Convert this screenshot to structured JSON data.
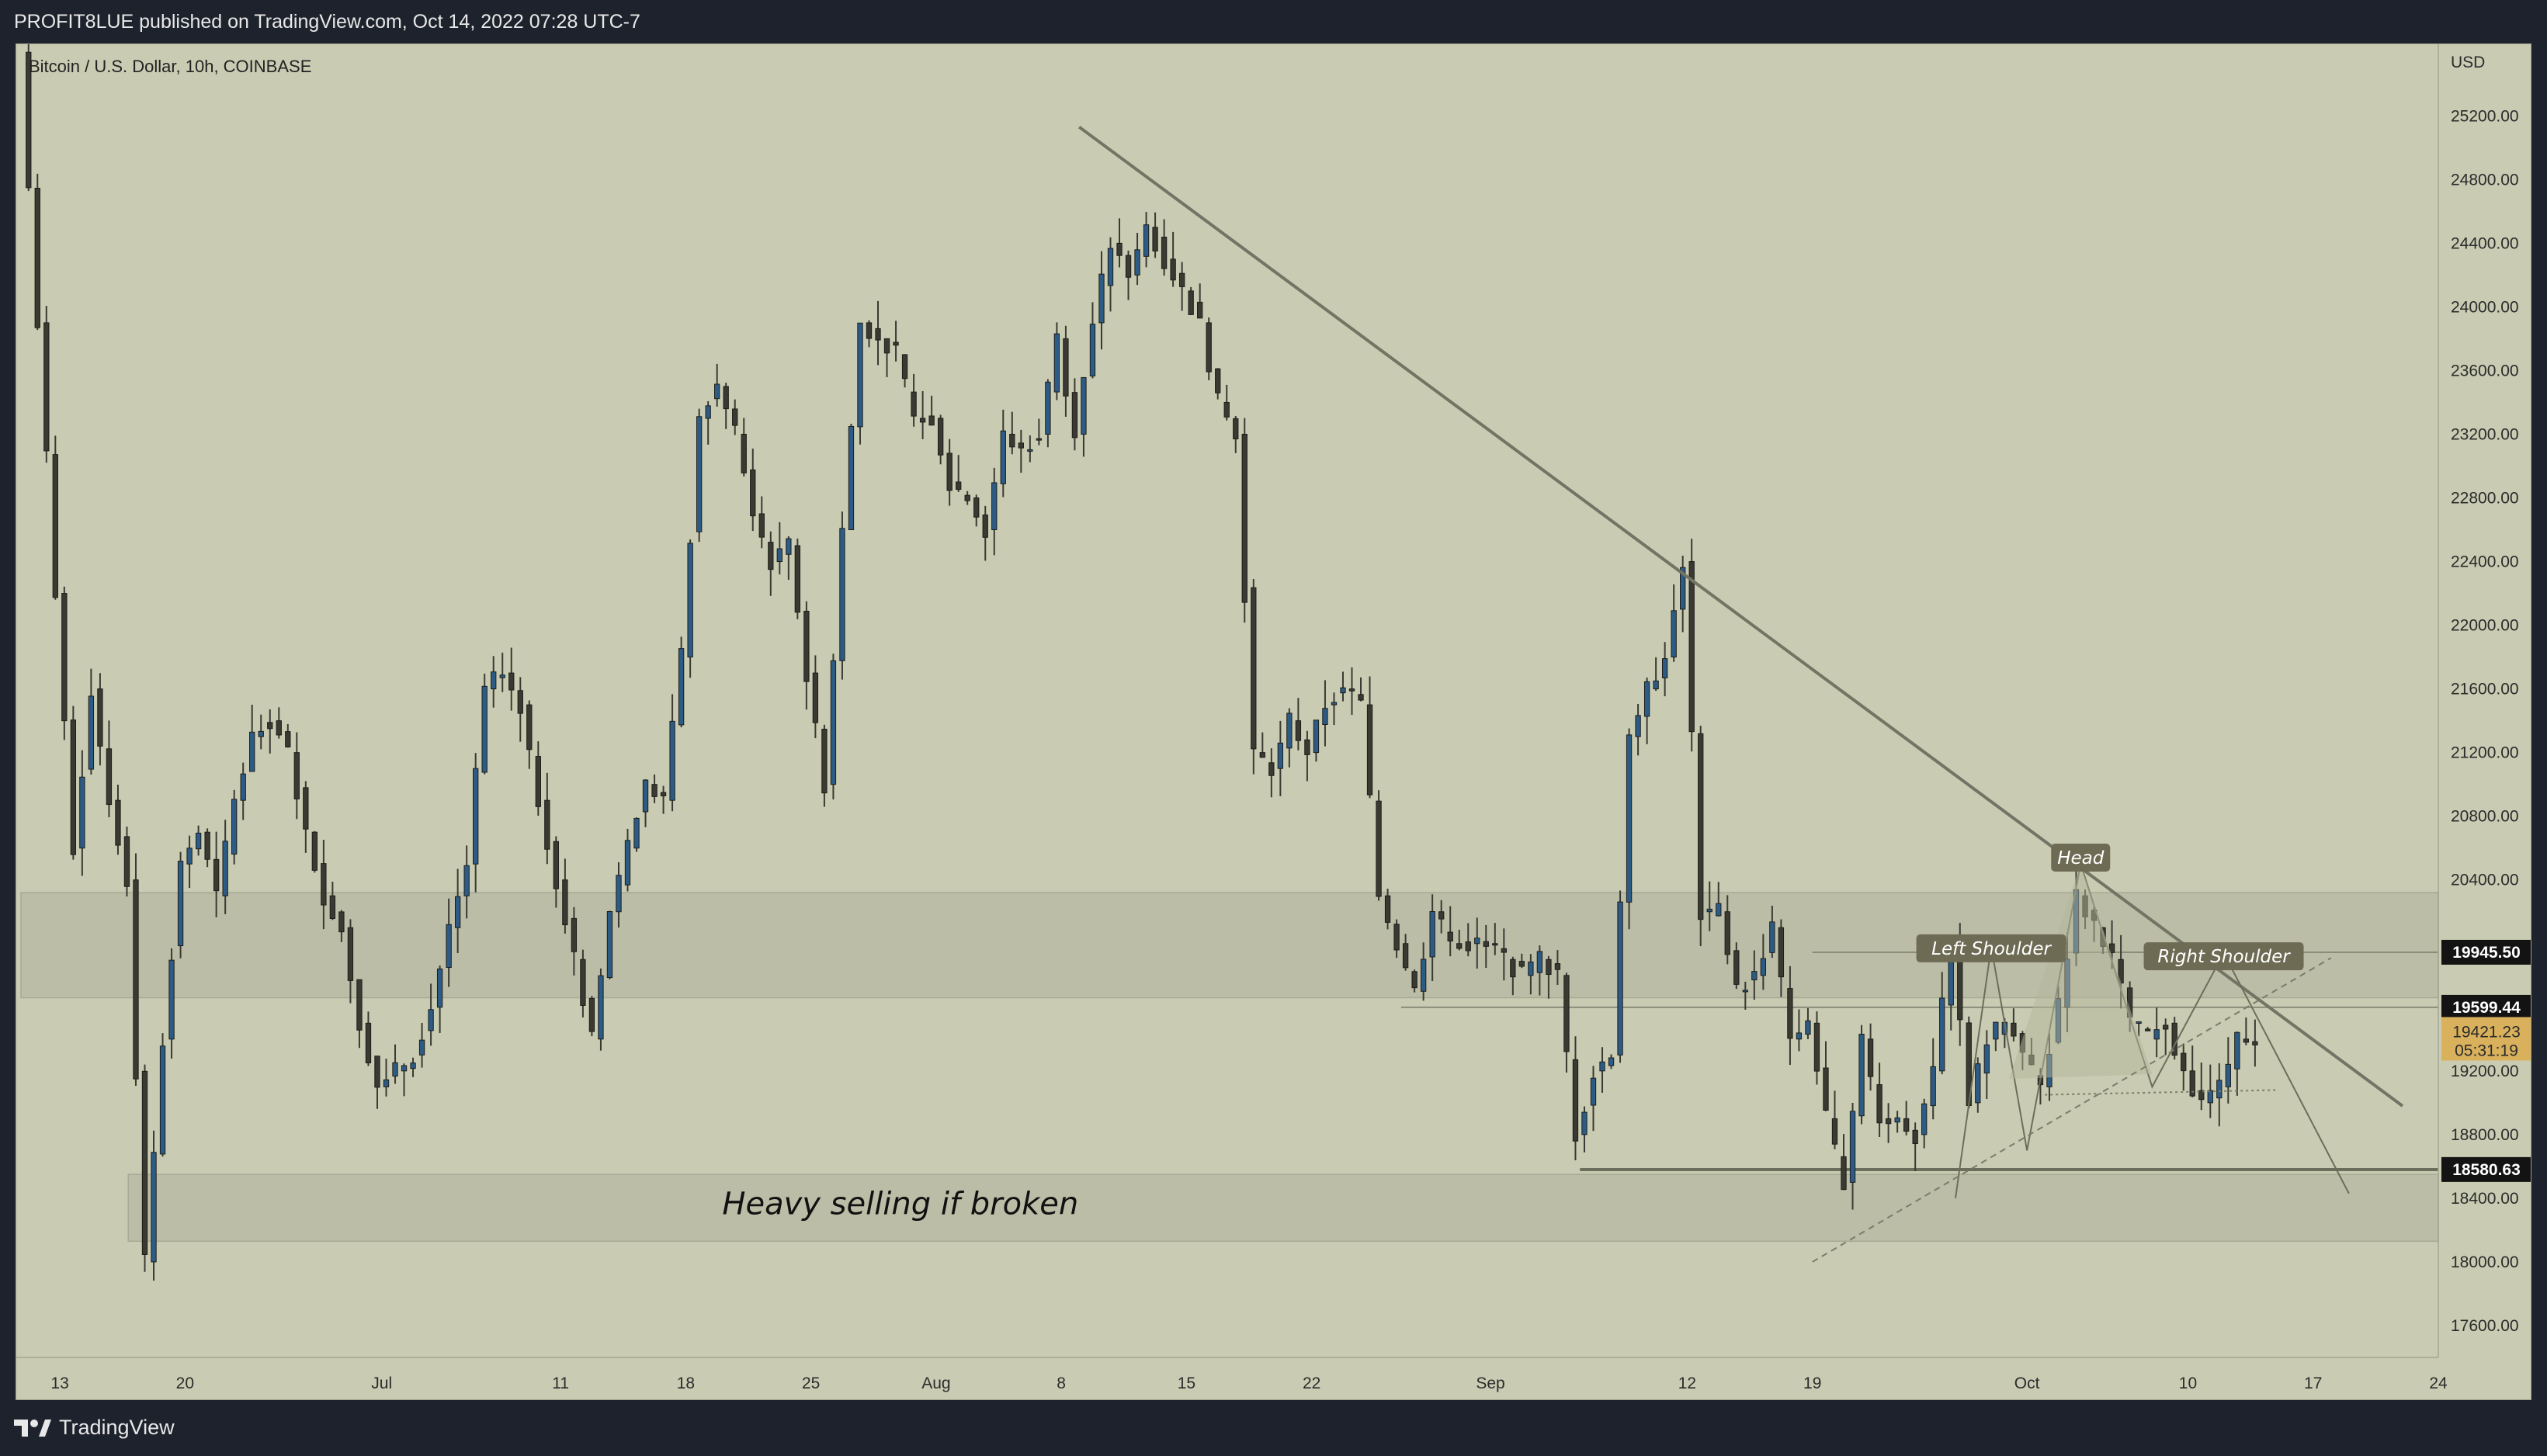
{
  "header": {
    "publisher": "PROFIT8LUE published on TradingView.com, Oct 14, 2022 07:28 UTC-7"
  },
  "footer": {
    "brand": "TradingView"
  },
  "icons": {
    "brand": "tradingview-logo-icon"
  },
  "colors": {
    "background": "#c9ccb2",
    "bull": "#2c5b86",
    "bear": "#3a3a33",
    "trendline": "#727563",
    "zone": "#b6b8a1",
    "pattern_label_bg": "#6d6b53",
    "current_tag": "#d9b15d"
  },
  "chart_data": {
    "type": "candlestick",
    "symbol_legend": "Bitcoin / U.S. Dollar, 10h, COINBASE",
    "currency": "USD",
    "ylim": [
      17400,
      25650
    ],
    "y_ticks": [
      17600,
      18000,
      18400,
      18800,
      19200,
      19600,
      20000,
      20400,
      20800,
      21200,
      21600,
      22000,
      22400,
      22800,
      23200,
      23600,
      24000,
      24400,
      24800,
      25200
    ],
    "y_tick_labels": [
      "17600.00",
      "18000.00",
      "18400.00",
      "18800.00",
      "19200.00",
      "",
      "",
      "20400.00",
      "20800.00",
      "21200.00",
      "21600.00",
      "22000.00",
      "22400.00",
      "22800.00",
      "23200.00",
      "23600.00",
      "24000.00",
      "24400.00",
      "24800.00",
      "25200.00"
    ],
    "x_ticks": [
      {
        "label": "13",
        "date": "2022-06-13"
      },
      {
        "label": "20",
        "date": "2022-06-20"
      },
      {
        "label": "Jul",
        "date": "2022-07-01"
      },
      {
        "label": "11",
        "date": "2022-07-11"
      },
      {
        "label": "18",
        "date": "2022-07-18"
      },
      {
        "label": "25",
        "date": "2022-07-25"
      },
      {
        "label": "Aug",
        "date": "2022-08-01"
      },
      {
        "label": "8",
        "date": "2022-08-08"
      },
      {
        "label": "15",
        "date": "2022-08-15"
      },
      {
        "label": "22",
        "date": "2022-08-22"
      },
      {
        "label": "Sep",
        "date": "2022-09-01"
      },
      {
        "label": "12",
        "date": "2022-09-12"
      },
      {
        "label": "19",
        "date": "2022-09-19"
      },
      {
        "label": "Oct",
        "date": "2022-10-01"
      },
      {
        "label": "10",
        "date": "2022-10-10"
      },
      {
        "label": "17",
        "date": "2022-10-17"
      },
      {
        "label": "24",
        "date": "2022-10-24"
      }
    ],
    "xlim": [
      "2022-06-11",
      "2022-10-24"
    ],
    "closes": [
      {
        "date": "2022-06-11",
        "close": 25600
      },
      {
        "date": "2022-06-12",
        "close": 23900
      },
      {
        "date": "2022-06-13",
        "close": 22200
      },
      {
        "date": "2022-06-14",
        "close": 20600
      },
      {
        "date": "2022-06-15",
        "close": 21600
      },
      {
        "date": "2022-06-16",
        "close": 20900
      },
      {
        "date": "2022-06-17",
        "close": 20400
      },
      {
        "date": "2022-06-18",
        "close": 18000
      },
      {
        "date": "2022-06-19",
        "close": 19400
      },
      {
        "date": "2022-06-20",
        "close": 20500
      },
      {
        "date": "2022-06-21",
        "close": 20700
      },
      {
        "date": "2022-06-22",
        "close": 20300
      },
      {
        "date": "2022-06-23",
        "close": 20900
      },
      {
        "date": "2022-06-24",
        "close": 21300
      },
      {
        "date": "2022-06-25",
        "close": 21400
      },
      {
        "date": "2022-06-26",
        "close": 21200
      },
      {
        "date": "2022-06-27",
        "close": 20700
      },
      {
        "date": "2022-06-28",
        "close": 20300
      },
      {
        "date": "2022-06-29",
        "close": 20100
      },
      {
        "date": "2022-06-30",
        "close": 19500
      },
      {
        "date": "2022-07-01",
        "close": 19100
      },
      {
        "date": "2022-07-02",
        "close": 19200
      },
      {
        "date": "2022-07-03",
        "close": 19300
      },
      {
        "date": "2022-07-04",
        "close": 19600
      },
      {
        "date": "2022-07-05",
        "close": 20100
      },
      {
        "date": "2022-07-06",
        "close": 20500
      },
      {
        "date": "2022-07-07",
        "close": 21600
      },
      {
        "date": "2022-07-08",
        "close": 21700
      },
      {
        "date": "2022-07-09",
        "close": 21500
      },
      {
        "date": "2022-07-10",
        "close": 20900
      },
      {
        "date": "2022-07-11",
        "close": 20400
      },
      {
        "date": "2022-07-12",
        "close": 19900
      },
      {
        "date": "2022-07-13",
        "close": 19400
      },
      {
        "date": "2022-07-14",
        "close": 20200
      },
      {
        "date": "2022-07-15",
        "close": 20600
      },
      {
        "date": "2022-07-16",
        "close": 21000
      },
      {
        "date": "2022-07-17",
        "close": 20900
      },
      {
        "date": "2022-07-18",
        "close": 21800
      },
      {
        "date": "2022-07-19",
        "close": 23300
      },
      {
        "date": "2022-07-20",
        "close": 23500
      },
      {
        "date": "2022-07-21",
        "close": 23200
      },
      {
        "date": "2022-07-22",
        "close": 22700
      },
      {
        "date": "2022-07-23",
        "close": 22400
      },
      {
        "date": "2022-07-24",
        "close": 22500
      },
      {
        "date": "2022-07-25",
        "close": 21700
      },
      {
        "date": "2022-07-26",
        "close": 21000
      },
      {
        "date": "2022-07-27",
        "close": 22600
      },
      {
        "date": "2022-07-28",
        "close": 23900
      },
      {
        "date": "2022-07-29",
        "close": 23800
      },
      {
        "date": "2022-07-30",
        "close": 23700
      },
      {
        "date": "2022-07-31",
        "close": 23300
      },
      {
        "date": "2022-08-01",
        "close": 23300
      },
      {
        "date": "2022-08-02",
        "close": 22900
      },
      {
        "date": "2022-08-03",
        "close": 22800
      },
      {
        "date": "2022-08-04",
        "close": 22600
      },
      {
        "date": "2022-08-05",
        "close": 23200
      },
      {
        "date": "2022-08-06",
        "close": 23100
      },
      {
        "date": "2022-08-07",
        "close": 23200
      },
      {
        "date": "2022-08-08",
        "close": 23800
      },
      {
        "date": "2022-08-09",
        "close": 23200
      },
      {
        "date": "2022-08-10",
        "close": 23900
      },
      {
        "date": "2022-08-11",
        "close": 24400
      },
      {
        "date": "2022-08-12",
        "close": 24200
      },
      {
        "date": "2022-08-13",
        "close": 24500
      },
      {
        "date": "2022-08-14",
        "close": 24300
      },
      {
        "date": "2022-08-15",
        "close": 24100
      },
      {
        "date": "2022-08-16",
        "close": 23900
      },
      {
        "date": "2022-08-17",
        "close": 23400
      },
      {
        "date": "2022-08-18",
        "close": 23200
      },
      {
        "date": "2022-08-19",
        "close": 21200
      },
      {
        "date": "2022-08-20",
        "close": 21100
      },
      {
        "date": "2022-08-21",
        "close": 21400
      },
      {
        "date": "2022-08-22",
        "close": 21200
      },
      {
        "date": "2022-08-23",
        "close": 21500
      },
      {
        "date": "2022-08-24",
        "close": 21600
      },
      {
        "date": "2022-08-25",
        "close": 21500
      },
      {
        "date": "2022-08-26",
        "close": 20300
      },
      {
        "date": "2022-08-27",
        "close": 20000
      },
      {
        "date": "2022-08-28",
        "close": 19700
      },
      {
        "date": "2022-08-29",
        "close": 20200
      },
      {
        "date": "2022-08-30",
        "close": 20000
      },
      {
        "date": "2022-08-31",
        "close": 20000
      },
      {
        "date": "2022-09-01",
        "close": 20000
      },
      {
        "date": "2022-09-02",
        "close": 19900
      },
      {
        "date": "2022-09-03",
        "close": 19800
      },
      {
        "date": "2022-09-04",
        "close": 19900
      },
      {
        "date": "2022-09-05",
        "close": 19800
      },
      {
        "date": "2022-09-06",
        "close": 18800
      },
      {
        "date": "2022-09-07",
        "close": 19200
      },
      {
        "date": "2022-09-08",
        "close": 19300
      },
      {
        "date": "2022-09-09",
        "close": 21300
      },
      {
        "date": "2022-09-10",
        "close": 21600
      },
      {
        "date": "2022-09-11",
        "close": 21800
      },
      {
        "date": "2022-09-12",
        "close": 22400
      },
      {
        "date": "2022-09-13",
        "close": 20200
      },
      {
        "date": "2022-09-14",
        "close": 20200
      },
      {
        "date": "2022-09-15",
        "close": 19700
      },
      {
        "date": "2022-09-16",
        "close": 19800
      },
      {
        "date": "2022-09-17",
        "close": 20100
      },
      {
        "date": "2022-09-18",
        "close": 19400
      },
      {
        "date": "2022-09-19",
        "close": 19500
      },
      {
        "date": "2022-09-20",
        "close": 18900
      },
      {
        "date": "2022-09-21",
        "close": 18500
      },
      {
        "date": "2022-09-22",
        "close": 19400
      },
      {
        "date": "2022-09-23",
        "close": 18900
      },
      {
        "date": "2022-09-24",
        "close": 18900
      },
      {
        "date": "2022-09-25",
        "close": 18800
      },
      {
        "date": "2022-09-26",
        "close": 19200
      },
      {
        "date": "2022-09-27",
        "close": 20000
      },
      {
        "date": "2022-09-28",
        "close": 19000
      },
      {
        "date": "2022-09-29",
        "close": 19400
      },
      {
        "date": "2022-09-30",
        "close": 19500
      },
      {
        "date": "2022-10-01",
        "close": 19300
      },
      {
        "date": "2022-10-02",
        "close": 19100
      },
      {
        "date": "2022-10-03",
        "close": 19600
      },
      {
        "date": "2022-10-04",
        "close": 20300
      },
      {
        "date": "2022-10-05",
        "close": 20100
      },
      {
        "date": "2022-10-06",
        "close": 19900
      },
      {
        "date": "2022-10-07",
        "close": 19500
      },
      {
        "date": "2022-10-08",
        "close": 19400
      },
      {
        "date": "2022-10-09",
        "close": 19500
      },
      {
        "date": "2022-10-10",
        "close": 19200
      },
      {
        "date": "2022-10-11",
        "close": 19000
      },
      {
        "date": "2022-10-12",
        "close": 19100
      },
      {
        "date": "2022-10-13",
        "close": 19400
      },
      {
        "date": "2022-10-14",
        "close": 19421
      }
    ],
    "price_tags": [
      {
        "value": 19945.5,
        "label": "19945.50",
        "style": "dark"
      },
      {
        "value": 19599.44,
        "label": "19599.44",
        "style": "dark"
      },
      {
        "value": 18580.63,
        "label": "18580.63",
        "style": "dark"
      }
    ],
    "current_price": {
      "value": 19421.23,
      "label": "19421.23",
      "countdown": "05:31:19"
    },
    "zones": [
      {
        "from": "2022-06-11",
        "to": "2022-10-24",
        "low": 19660,
        "high": 20320
      },
      {
        "from": "2022-06-17",
        "to": "2022-10-24",
        "low": 18130,
        "high": 18550
      }
    ],
    "trendline": {
      "from": {
        "date": "2022-08-09",
        "price": 25130
      },
      "to": {
        "date": "2022-10-22",
        "price": 18980
      }
    },
    "support_line": {
      "from": "2022-09-06",
      "to": "2022-10-24",
      "price": 18580
    },
    "annotations": [
      {
        "text": "Heavy selling if broken",
        "date": "2022-07-30",
        "price": 18300
      },
      {
        "text": "Left Shoulder",
        "date": "2022-09-29",
        "price": 19970
      },
      {
        "text": "Head",
        "date": "2022-10-04",
        "price": 20540
      },
      {
        "text": "Right Shoulder",
        "date": "2022-10-12",
        "price": 19920
      }
    ]
  }
}
